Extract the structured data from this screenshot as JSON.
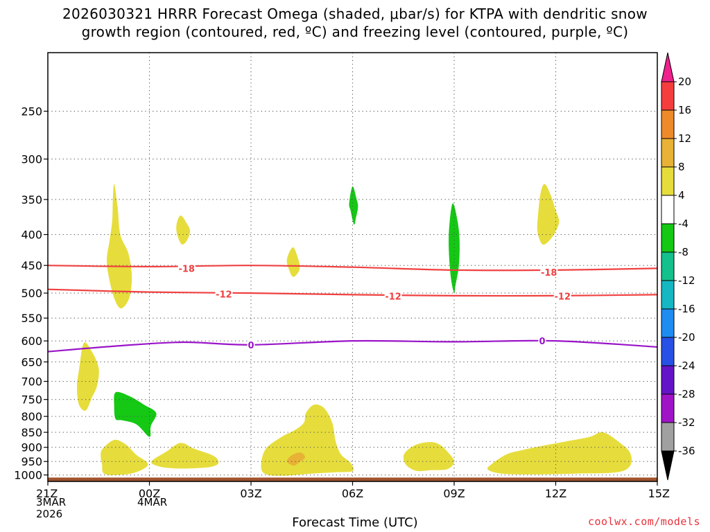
{
  "title_line1": "2026030321 HRRR Forecast Omega (shaded, μbar/s) for KTPA with dendritic snow",
  "title_line2": "growth region (contoured, red, ºC) and freezing level (contoured, purple, ºC)",
  "xlabel": "Forecast Time (UTC)",
  "credit": "coolwx.com/models",
  "date_labels": {
    "start": [
      "3MAR",
      "2026"
    ],
    "day2": [
      "4MAR"
    ]
  },
  "chart_data": {
    "type": "heatmap",
    "x_unit": "hours since 2026-03-03 21Z",
    "xlim": [
      0,
      18
    ],
    "y_unit": "pressure (hPa)",
    "ylim": [
      1025,
      200
    ],
    "y_scale": "log",
    "x_ticks": [
      {
        "x": 0,
        "label": "21Z"
      },
      {
        "x": 3,
        "label": "00Z"
      },
      {
        "x": 6,
        "label": "03Z"
      },
      {
        "x": 9,
        "label": "06Z"
      },
      {
        "x": 12,
        "label": "09Z"
      },
      {
        "x": 15,
        "label": "12Z"
      },
      {
        "x": 18,
        "label": "15Z"
      }
    ],
    "y_ticks": [
      250,
      300,
      350,
      400,
      450,
      500,
      550,
      600,
      650,
      700,
      750,
      800,
      850,
      900,
      950,
      1000
    ],
    "grid": true,
    "colorbar": {
      "label_values": [
        20,
        16,
        12,
        8,
        4,
        -4,
        -8,
        -12,
        -16,
        -20,
        -24,
        -28,
        -32,
        -36
      ],
      "segments": [
        {
          "range": [
            20,
            24
          ],
          "color": "#f0208c"
        },
        {
          "range": [
            16,
            20
          ],
          "color": "#f53d3d"
        },
        {
          "range": [
            12,
            16
          ],
          "color": "#ef8a2b"
        },
        {
          "range": [
            8,
            12
          ],
          "color": "#e8b236"
        },
        {
          "range": [
            4,
            8
          ],
          "color": "#e6dd3c"
        },
        {
          "range": [
            -4,
            4
          ],
          "color": "#ffffff"
        },
        {
          "range": [
            -8,
            -4
          ],
          "color": "#14c814"
        },
        {
          "range": [
            -12,
            -8
          ],
          "color": "#14c08c"
        },
        {
          "range": [
            -16,
            -12
          ],
          "color": "#15b7c3"
        },
        {
          "range": [
            -20,
            -16
          ],
          "color": "#1e8cf0"
        },
        {
          "range": [
            -24,
            -20
          ],
          "color": "#2850e6"
        },
        {
          "range": [
            -28,
            -24
          ],
          "color": "#6414c8"
        },
        {
          "range": [
            -32,
            -28
          ],
          "color": "#a014c8"
        },
        {
          "range": [
            -36,
            -32
          ],
          "color": "#a0a0a0"
        },
        {
          "range": [
            -40,
            -36
          ],
          "color": "#000000"
        }
      ]
    },
    "omega_regions": [
      {
        "name": "upper-left-ascent-lobe",
        "value": 4,
        "color": "#e6dd3c",
        "points": [
          [
            1.96,
            330
          ],
          [
            2.06,
            360
          ],
          [
            2.14,
            400
          ],
          [
            2.38,
            430
          ],
          [
            2.48,
            470
          ],
          [
            2.4,
            510
          ],
          [
            2.16,
            530
          ],
          [
            1.96,
            510
          ],
          [
            1.8,
            470
          ],
          [
            1.74,
            440
          ],
          [
            1.82,
            410
          ],
          [
            1.9,
            380
          ],
          [
            1.92,
            350
          ]
        ]
      },
      {
        "name": "upper-small-lobe-00z",
        "value": 4,
        "color": "#e6dd3c",
        "points": [
          [
            3.92,
            372
          ],
          [
            4.1,
            383
          ],
          [
            4.2,
            395
          ],
          [
            4.1,
            410
          ],
          [
            3.95,
            415
          ],
          [
            3.82,
            400
          ],
          [
            3.8,
            385
          ]
        ]
      },
      {
        "name": "mid-left-lobe",
        "value": 4,
        "color": "#e6dd3c",
        "points": [
          [
            1.06,
            605
          ],
          [
            1.3,
            625
          ],
          [
            1.5,
            665
          ],
          [
            1.46,
            710
          ],
          [
            1.3,
            745
          ],
          [
            1.12,
            782
          ],
          [
            0.92,
            765
          ],
          [
            0.86,
            715
          ],
          [
            0.92,
            670
          ]
        ]
      },
      {
        "name": "green-descent-0z",
        "value": -4,
        "color": "#14c814",
        "points": [
          [
            2.0,
            730
          ],
          [
            2.4,
            740
          ],
          [
            2.84,
            765
          ],
          [
            3.2,
            790
          ],
          [
            3.04,
            830
          ],
          [
            3.0,
            865
          ],
          [
            2.62,
            825
          ],
          [
            2.2,
            812
          ],
          [
            2.0,
            808
          ],
          [
            1.96,
            770
          ]
        ]
      },
      {
        "name": "low-left-lobe",
        "value": 4,
        "color": "#e6dd3c",
        "points": [
          [
            1.62,
            905
          ],
          [
            1.96,
            875
          ],
          [
            2.3,
            890
          ],
          [
            2.6,
            925
          ],
          [
            2.96,
            960
          ],
          [
            2.6,
            990
          ],
          [
            2.1,
            1000
          ],
          [
            1.66,
            995
          ],
          [
            1.6,
            960
          ],
          [
            1.56,
            930
          ]
        ]
      },
      {
        "name": "low-small-lobe-00z",
        "value": 4,
        "color": "#e6dd3c",
        "points": [
          [
            3.06,
            950
          ],
          [
            3.5,
            915
          ],
          [
            3.92,
            885
          ],
          [
            4.32,
            905
          ],
          [
            4.9,
            930
          ],
          [
            5.04,
            955
          ],
          [
            4.8,
            970
          ],
          [
            4.22,
            975
          ],
          [
            3.7,
            975
          ],
          [
            3.28,
            968
          ]
        ]
      },
      {
        "name": "low-central-lobe",
        "value": 4,
        "color": "#e6dd3c",
        "points": [
          [
            6.44,
            905
          ],
          [
            6.9,
            865
          ],
          [
            7.26,
            845
          ],
          [
            7.56,
            820
          ],
          [
            7.62,
            790
          ],
          [
            7.86,
            765
          ],
          [
            8.16,
            775
          ],
          [
            8.4,
            820
          ],
          [
            8.5,
            880
          ],
          [
            8.66,
            925
          ],
          [
            8.94,
            955
          ],
          [
            9.0,
            985
          ],
          [
            8.5,
            990
          ],
          [
            7.8,
            995
          ],
          [
            6.9,
            1003
          ],
          [
            6.4,
            995
          ],
          [
            6.3,
            960
          ]
        ]
      },
      {
        "name": "low-central-orange-core",
        "value": 8,
        "color": "#e8b236",
        "points": [
          [
            7.2,
            928
          ],
          [
            7.46,
            918
          ],
          [
            7.6,
            935
          ],
          [
            7.4,
            955
          ],
          [
            7.26,
            965
          ],
          [
            7.06,
            950
          ]
        ]
      },
      {
        "name": "upper-green-06z",
        "value": -4,
        "color": "#14c814",
        "points": [
          [
            9.0,
            333
          ],
          [
            9.12,
            350
          ],
          [
            9.16,
            360
          ],
          [
            9.1,
            375
          ],
          [
            9.04,
            385
          ],
          [
            8.94,
            365
          ],
          [
            8.9,
            355
          ]
        ]
      },
      {
        "name": "upper-mid-lobe-07z",
        "value": 4,
        "color": "#e6dd3c",
        "points": [
          [
            7.24,
            420
          ],
          [
            7.4,
            440
          ],
          [
            7.44,
            455
          ],
          [
            7.36,
            465
          ],
          [
            7.24,
            470
          ],
          [
            7.14,
            460
          ],
          [
            7.06,
            440
          ]
        ]
      },
      {
        "name": "green-09z",
        "value": -4,
        "color": "#14c814",
        "points": [
          [
            11.96,
            355
          ],
          [
            12.1,
            380
          ],
          [
            12.16,
            410
          ],
          [
            12.14,
            450
          ],
          [
            12.04,
            485
          ],
          [
            12.0,
            500
          ],
          [
            11.9,
            470
          ],
          [
            11.84,
            420
          ],
          [
            11.86,
            385
          ]
        ]
      },
      {
        "name": "upper-right-lobe",
        "value": 4,
        "color": "#e6dd3c",
        "points": [
          [
            14.68,
            330
          ],
          [
            14.86,
            345
          ],
          [
            15.0,
            365
          ],
          [
            15.1,
            380
          ],
          [
            15.0,
            395
          ],
          [
            14.8,
            410
          ],
          [
            14.6,
            415
          ],
          [
            14.46,
            395
          ],
          [
            14.48,
            370
          ],
          [
            14.56,
            340
          ]
        ]
      },
      {
        "name": "low-lobe-08z",
        "value": 4,
        "color": "#e6dd3c",
        "points": [
          [
            10.6,
            912
          ],
          [
            10.9,
            890
          ],
          [
            11.3,
            882
          ],
          [
            11.56,
            890
          ],
          [
            11.8,
            915
          ],
          [
            12.0,
            950
          ],
          [
            11.8,
            978
          ],
          [
            11.3,
            982
          ],
          [
            10.9,
            985
          ],
          [
            10.6,
            965
          ],
          [
            10.5,
            935
          ]
        ]
      },
      {
        "name": "low-right-lobe",
        "value": 4,
        "color": "#e6dd3c",
        "points": [
          [
            13.1,
            960
          ],
          [
            13.54,
            925
          ],
          [
            14.0,
            910
          ],
          [
            14.6,
            895
          ],
          [
            15.3,
            880
          ],
          [
            16.0,
            865
          ],
          [
            16.4,
            850
          ],
          [
            16.9,
            885
          ],
          [
            17.2,
            920
          ],
          [
            17.2,
            965
          ],
          [
            16.8,
            990
          ],
          [
            15.6,
            995
          ],
          [
            14.3,
            998
          ],
          [
            13.4,
            995
          ],
          [
            13.0,
            980
          ]
        ]
      }
    ],
    "red_contours": [
      {
        "label": "-18",
        "label_positions": [
          [
            4.1,
            455
          ],
          [
            14.8,
            462
          ]
        ],
        "points": [
          [
            0,
            450
          ],
          [
            3,
            452
          ],
          [
            6,
            450
          ],
          [
            9,
            453
          ],
          [
            12,
            458
          ],
          [
            15,
            458
          ],
          [
            18,
            455
          ]
        ]
      },
      {
        "label": "-12",
        "label_positions": [
          [
            5.2,
            502
          ],
          [
            10.2,
            506
          ],
          [
            15.2,
            506
          ]
        ],
        "points": [
          [
            0,
            493
          ],
          [
            3,
            498
          ],
          [
            6,
            500
          ],
          [
            9,
            503
          ],
          [
            12,
            505
          ],
          [
            15,
            505
          ],
          [
            18,
            503
          ]
        ]
      }
    ],
    "purple_contours": [
      {
        "label": "0",
        "label_positions": [
          [
            6.0,
            609
          ],
          [
            14.6,
            600
          ]
        ],
        "points": [
          [
            0,
            625
          ],
          [
            2,
            612
          ],
          [
            4,
            603
          ],
          [
            6,
            609
          ],
          [
            9,
            600
          ],
          [
            12,
            602
          ],
          [
            15,
            600
          ],
          [
            18,
            614
          ]
        ]
      }
    ],
    "terrain": {
      "top_hpa": 1010,
      "color": "#a0522d"
    }
  }
}
